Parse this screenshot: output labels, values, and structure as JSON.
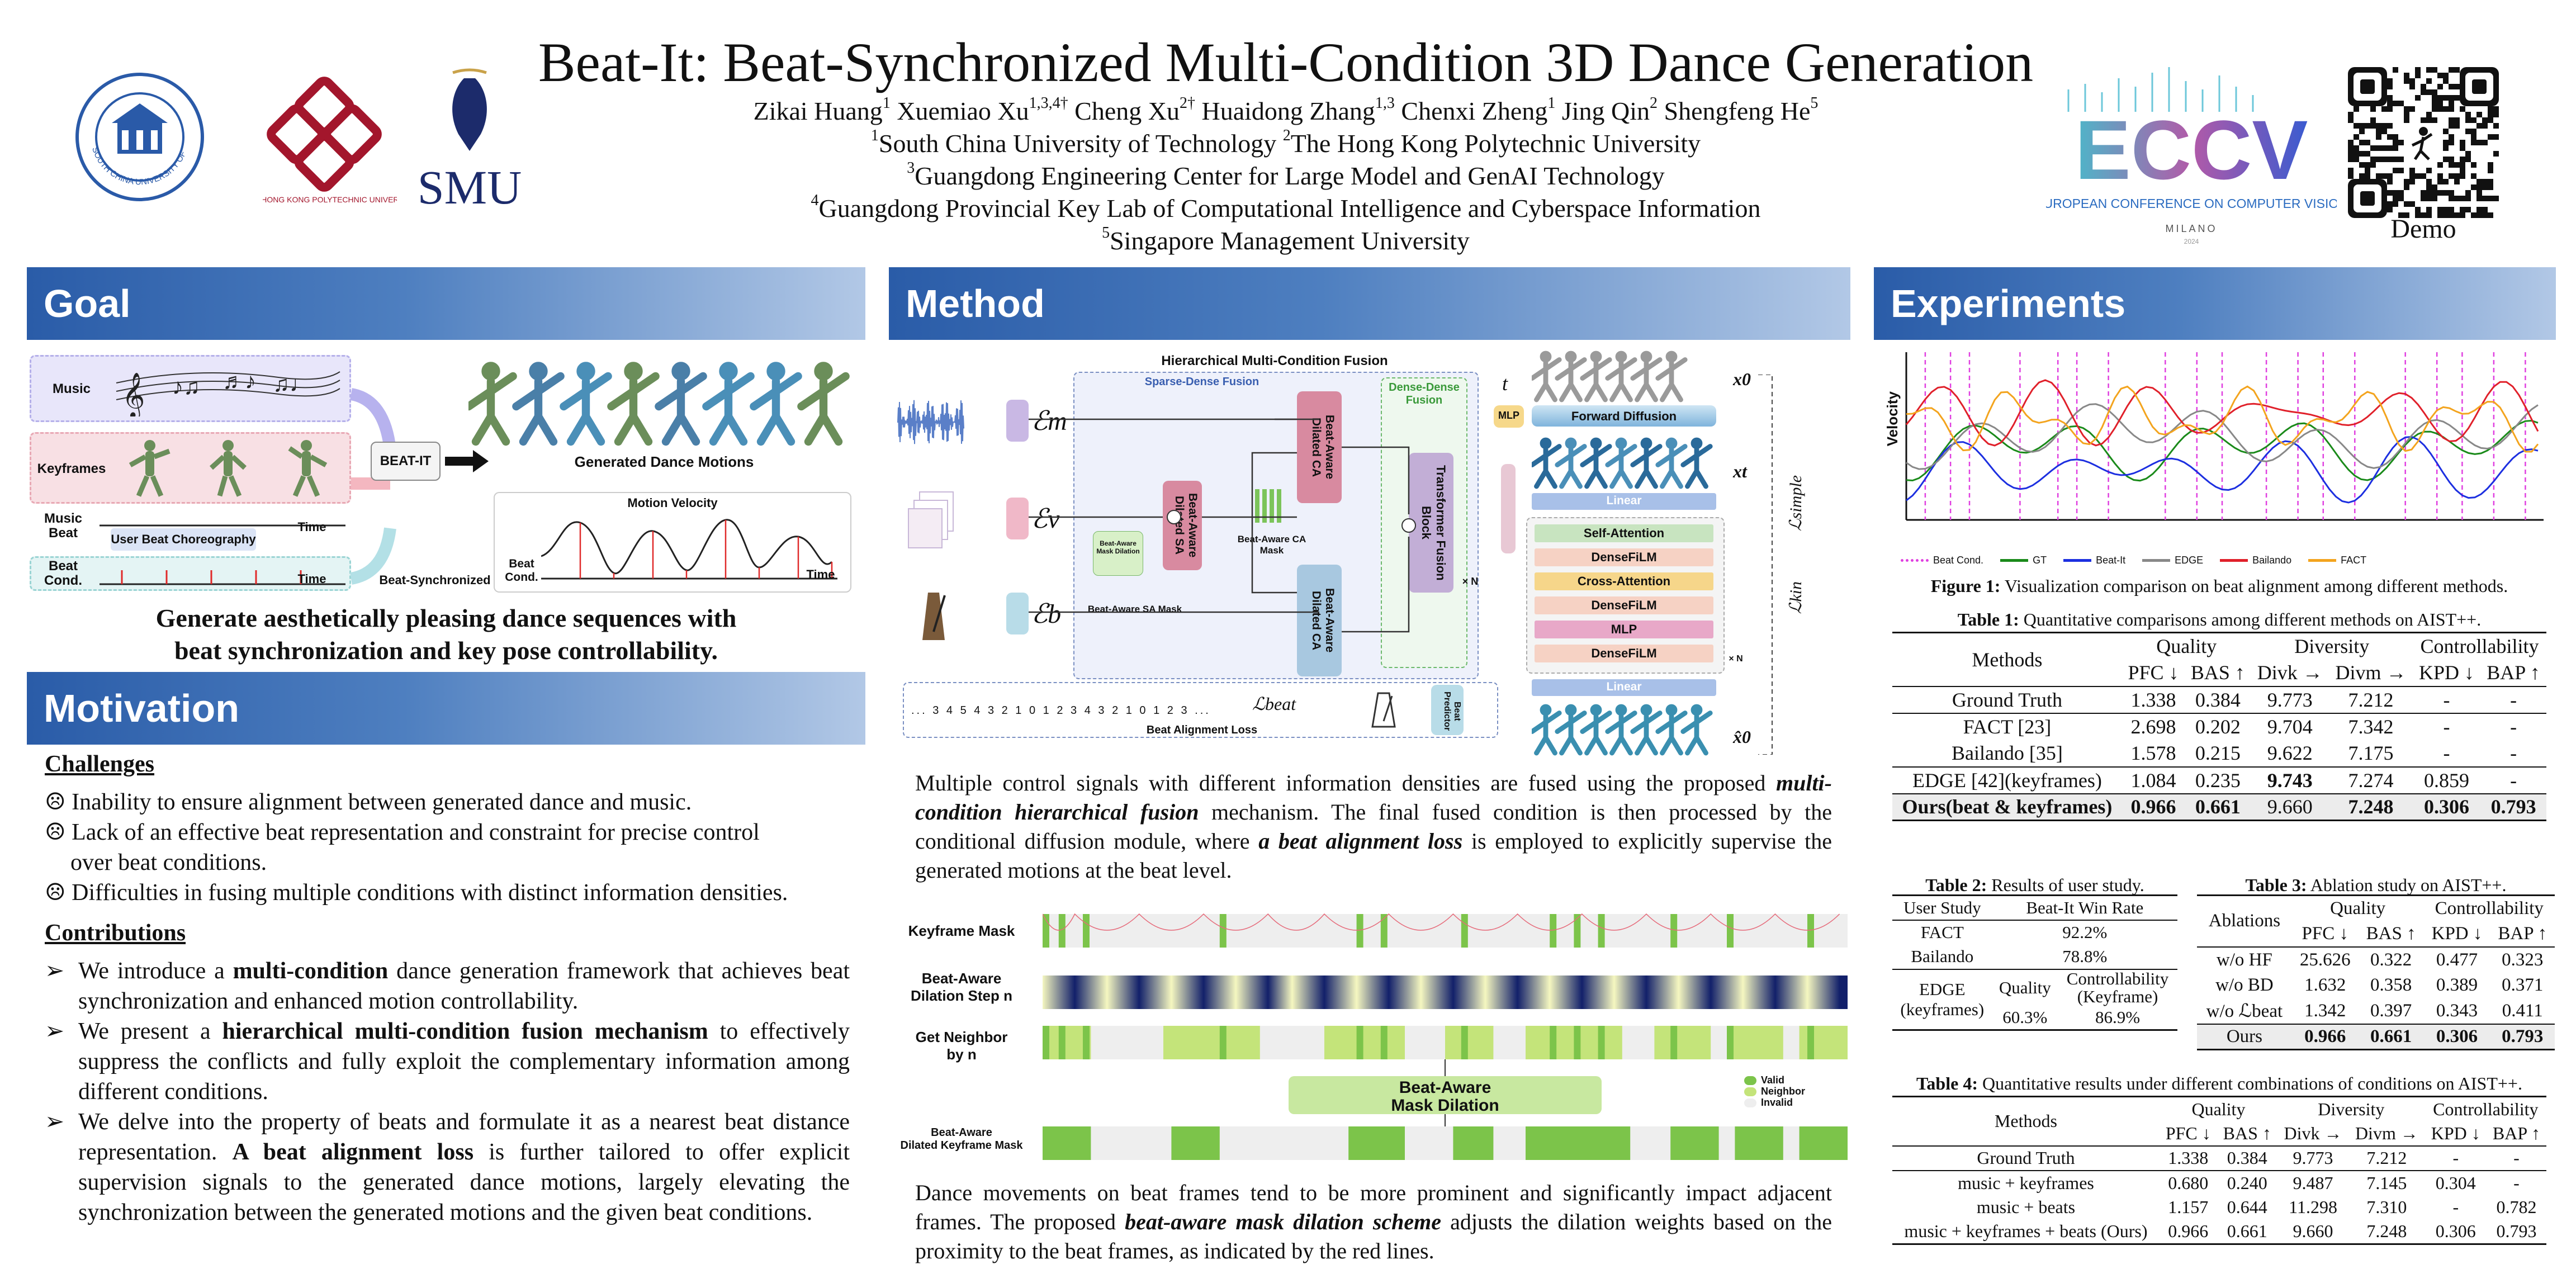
{
  "title": "Beat-It: Beat-Synchronized Multi-Condition 3D Dance Generation",
  "authors": {
    "line1": [
      {
        "name": "Zikai Huang",
        "sup": "1"
      },
      {
        "name": "Xuemiao Xu",
        "sup": "1,3,4†"
      },
      {
        "name": "Cheng Xu",
        "sup": "2†"
      },
      {
        "name": "Huaidong Zhang",
        "sup": "1,3"
      },
      {
        "name": "Chenxi Zheng",
        "sup": "1"
      },
      {
        "name": "Jing Qin",
        "sup": "2"
      },
      {
        "name": "Shengfeng He",
        "sup": "5"
      }
    ],
    "affil1_sup": "1",
    "affil1": "South China University of Technology ",
    "affil2_sup": "2",
    "affil2": "The Hong Kong Polytechnic University",
    "affil3_sup": "3",
    "affil3": "Guangdong Engineering Center for Large Model and GenAI Technology",
    "affil4_sup": "4",
    "affil4": "Guangdong Provincial Key Lab of Computational Intelligence and Cyberspace Information",
    "affil5_sup": "5",
    "affil5": "Singapore Management University"
  },
  "logos": {
    "scut": "SOUTH CHINA UNIVERSITY OF TECHNOLOGY",
    "polyu": "THE HONG KONG POLYTECHNIC UNIVERSITY",
    "smu": "SMU",
    "eccv": "ECCV",
    "eccv_sub": "EUROPEAN CONFERENCE ON COMPUTER VISION",
    "eccv_city": "MILANO",
    "eccv_year": "2024",
    "demo": "Demo"
  },
  "sections": {
    "goal": "Goal",
    "motivation": "Motivation",
    "method": "Method",
    "experiments": "Experiments"
  },
  "goal": {
    "music": "Music",
    "keyframes": "Keyframes",
    "music_beat": "Music\nBeat",
    "user_beat": "User Beat Choreography",
    "time": "Time",
    "beat_cond": "Beat\nCond.",
    "beat_it": "BEAT-IT",
    "generated": "Generated Dance Motions",
    "motion_velocity": "Motion Velocity",
    "beat_cond2": "Beat\nCond.",
    "time2": "Time",
    "beat_sync": "Beat-Synchronized",
    "tagline1": "Generate aesthetically pleasing dance sequences with",
    "tagline2": "beat synchronization and key pose controllability."
  },
  "motivation": {
    "challenges": "Challenges",
    "c1": "Inability to ensure alignment between generated dance and music.",
    "c2a": "Lack of an effective beat representation and constraint for precise control",
    "c2b": "over beat conditions.",
    "c3": "Difficulties in fusing multiple conditions with distinct information densities.",
    "sad": "☹",
    "contributions": "Contributions",
    "b1_pre": "We introduce a ",
    "b1_bold": "multi-condition",
    "b1_post": " dance generation framework that achieves beat synchronization and enhanced motion controllability.",
    "b2_pre": "We present a ",
    "b2_bold": "hierarchical multi-condition fusion mechanism",
    "b2_post": " to effectively suppress the conflicts and fully exploit the complementary information among different conditions.",
    "b3_pre": "We delve into the property of beats and formulate it as a nearest beat distance representation. ",
    "b3_bold": "A beat alignment loss",
    "b3_post": " is further tailored to offer explicit supervision signals to the generated dance motions, largely elevating the synchronization between the generated motions and the given beat conditions.",
    "arrow": "➢"
  },
  "method": {
    "hmcf": "Hierarchical Multi-Condition Fusion",
    "sparse_dense": "Sparse-Dense Fusion",
    "dense_dense": "Dense-Dense Fusion",
    "em": "ℰm",
    "ev": "ℰv",
    "eb": "ℰb",
    "bads": "Beat-Aware Dilated SA",
    "badc1": "Beat-Aware Dilated CA",
    "badc2": "Beat-Aware Dilated CA",
    "tfb": "Transformer Fusion Block",
    "mask_dil": "Beat-Aware Mask Dilation",
    "sa_mask": "Beat-Aware SA Mask",
    "ca_mask": "Beat-Aware CA Mask",
    "nx": "× N",
    "t": "t",
    "mlp": "MLP",
    "x0": "x0",
    "xt": "xt",
    "x0hat": "x̂0",
    "fwd": "Forward Diffusion",
    "linear": "Linear",
    "layers": [
      "Self-Attention",
      "DenseFiLM",
      "Cross-Attention",
      "DenseFiLM",
      "MLP",
      "DenseFiLM"
    ],
    "linear2": "Linear",
    "lsimple": "ℒsimple",
    "lkin": "ℒkin",
    "lbeat": "ℒbeat",
    "bal": "Beat Alignment Loss",
    "beat_pred": "Beat Predictor",
    "seq": "... 3 4 5 4 3 2 1 0 1 2 3 4 3 2 1 0 1 2 3 ...",
    "text1_a": "Multiple control signals with different information densities are fused using the proposed ",
    "text1_b": "multi-condition hierarchical fusion",
    "text1_c": " mechanism. The final fused condition is then processed by the conditional diffusion module, where ",
    "text1_d": "a beat alignment loss",
    "text1_e": " is employed to explicitly supervise the generated motions at the beat level.",
    "km": "Keyframe Mask",
    "bads_step": "Beat-Aware\nDilation Step n",
    "gnb": "Get Neighbor\nby n",
    "bamd": "Beat-Aware\nMask Dilation",
    "badkm": "Beat-Aware\nDilated Keyframe Mask",
    "valid": "Valid",
    "neighbor": "Neighbor",
    "invalid": "Invalid",
    "text2_a": "Dance movements on beat frames tend to be more prominent and significantly impact adjacent frames. The proposed ",
    "text2_b": "beat-aware mask dilation scheme",
    "text2_c": " adjusts the dilation weights based on the proximity to the beat frames, as indicated by the red lines."
  },
  "experiments": {
    "fig1_ylabel": "Velocity",
    "legend": [
      {
        "label": "Beat Cond.",
        "color": "#e040e0"
      },
      {
        "label": "GT",
        "color": "#1a8a1a"
      },
      {
        "label": "Beat-It",
        "color": "#1c2fe0"
      },
      {
        "label": "EDGE",
        "color": "#888888"
      },
      {
        "label": "Bailando",
        "color": "#e0202a"
      },
      {
        "label": "FACT",
        "color": "#f3a41e"
      }
    ],
    "fig1_cap_b": "Figure 1:",
    "fig1_cap": " Visualization comparison on beat alignment among different methods.",
    "t1_cap_b": "Table 1:",
    "t1_cap": " Quantitative comparisons among different methods on AIST++.",
    "t1_head": {
      "methods": "Methods",
      "quality": "Quality",
      "diversity": "Diversity",
      "control": "Controllability"
    },
    "t1_sub": [
      "PFC ↓",
      "BAS ↑",
      "Divk →",
      "Divm →",
      "KPD ↓",
      "BAP ↑"
    ],
    "t1_rows": [
      [
        "Ground Truth",
        "1.338",
        "0.384",
        "9.773",
        "7.212",
        "-",
        "-"
      ],
      [
        "FACT [23]",
        "2.698",
        "0.202",
        "9.704",
        "7.342",
        "-",
        "-"
      ],
      [
        "Bailando [35]",
        "1.578",
        "0.215",
        "9.622",
        "7.175",
        "-",
        "-"
      ],
      [
        "EDGE [42](keyframes)",
        "1.084",
        "0.235",
        "9.743",
        "7.274",
        "0.859",
        "-"
      ],
      [
        "Ours(beat & keyframes)",
        "0.966",
        "0.661",
        "9.660",
        "7.248",
        "0.306",
        "0.793"
      ]
    ],
    "t2_cap_b": "Table 2:",
    "t2_cap": " Results of user study.",
    "t2_head": [
      "User Study",
      "Beat-It Win Rate"
    ],
    "t2_rows": [
      [
        "FACT",
        "92.2%"
      ],
      [
        "Bailando",
        "78.8%"
      ]
    ],
    "t2_edge": "EDGE\n(keyframes)",
    "t2_quality": "Quality",
    "t2_ctrl": "Controllability\n(Keyframe)",
    "t2_q_val": "60.3%",
    "t2_c_val": "86.9%",
    "t3_cap_b": "Table 3:",
    "t3_cap": " Ablation study on AIST++.",
    "t3_head": {
      "abl": "Ablations",
      "quality": "Quality",
      "control": "Controllability"
    },
    "t3_sub": [
      "PFC ↓",
      "BAS ↑",
      "KPD ↓",
      "BAP ↑"
    ],
    "t3_rows": [
      [
        "w/o HF",
        "25.626",
        "0.322",
        "0.477",
        "0.323"
      ],
      [
        "w/o BD",
        "1.632",
        "0.358",
        "0.389",
        "0.371"
      ],
      [
        "w/o ℒbeat",
        "1.342",
        "0.397",
        "0.343",
        "0.411"
      ],
      [
        "Ours",
        "0.966",
        "0.661",
        "0.306",
        "0.793"
      ]
    ],
    "t4_cap_b": "Table 4:",
    "t4_cap": " Quantitative results under different combinations of conditions on AIST++.",
    "t4_head": {
      "methods": "Methods",
      "quality": "Quality",
      "diversity": "Diversity",
      "control": "Controllability"
    },
    "t4_sub": [
      "PFC ↓",
      "BAS ↑",
      "Divk →",
      "Divm →",
      "KPD ↓",
      "BAP ↑"
    ],
    "t4_rows": [
      [
        "Ground Truth",
        "1.338",
        "0.384",
        "9.773",
        "7.212",
        "-",
        "-"
      ],
      [
        "music + keyframes",
        "0.680",
        "0.240",
        "9.487",
        "7.145",
        "0.304",
        "-"
      ],
      [
        "music + beats",
        "1.157",
        "0.644",
        "11.298",
        "7.310",
        "-",
        "0.782"
      ],
      [
        "music + keyframes + beats (Ours)",
        "0.966",
        "0.661",
        "9.660",
        "7.248",
        "0.306",
        "0.793"
      ]
    ]
  }
}
